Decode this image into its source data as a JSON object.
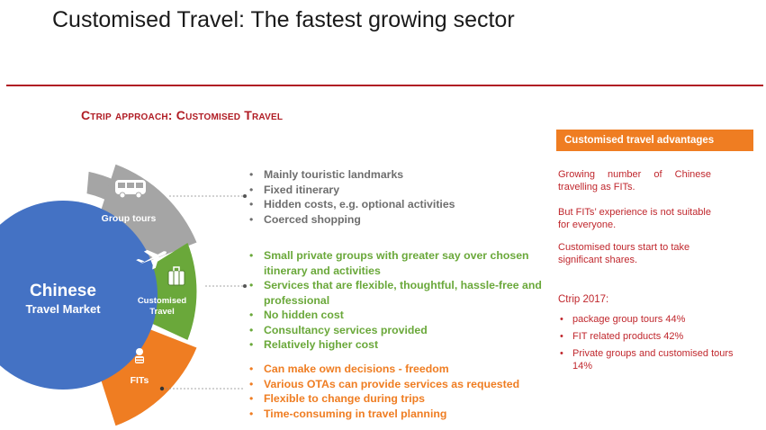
{
  "slide": {
    "title": "Customised Travel: The fastest growing sector",
    "heading": "Ctrip approach: Customised Travel"
  },
  "diagram": {
    "center_line1": "Chinese",
    "center_line2": "Travel Market",
    "segment_group": "Group tours",
    "segment_custom_line1": "Customised",
    "segment_custom_line2": "Travel",
    "segment_fits": "FITs"
  },
  "lists": {
    "group": [
      "Mainly touristic landmarks",
      "Fixed itinerary",
      "Hidden costs, e.g. optional activities",
      "Coerced shopping"
    ],
    "custom": [
      "Small private groups with greater say over chosen itinerary and activities",
      "Services that are flexible, thoughtful, hassle-free and professional",
      "No hidden cost",
      "Consultancy services provided",
      "Relatively higher cost"
    ],
    "fits": [
      "Can make own decisions - freedom",
      "Various OTAs can provide services as requested",
      "Flexible to change during trips",
      "Time-consuming in travel planning"
    ]
  },
  "sidebar": {
    "banner": "Customised travel advantages",
    "p1": "Growing number of Chinese travelling as FITs.",
    "p2": "But FITs’ experience is not suitable for everyone.",
    "p3": "Customised tours start to take significant shares.",
    "ctrip_title": "Ctrip 2017:",
    "ctrip_items": [
      "package group tours 44%",
      "FIT related products 42%",
      "Private groups and customised tours 14%"
    ]
  },
  "colors": {
    "accent_red": "#b01c24",
    "text_red": "#c0272d",
    "orange": "#ef7d22",
    "green": "#6aa83a",
    "grey_segment": "#a5a5a5",
    "blue_circle": "#4472c4"
  },
  "icons": [
    "bus-icon",
    "airplane-icon",
    "luggage-icon",
    "person-icon"
  ]
}
